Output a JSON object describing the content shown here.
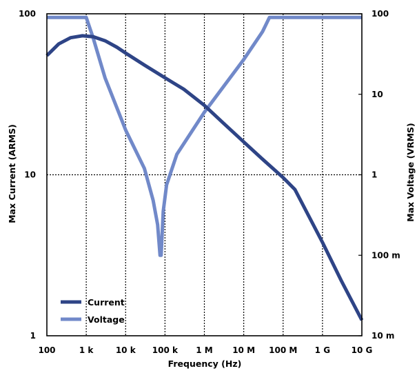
{
  "chart_data": {
    "type": "line",
    "xlabel": "Frequency (Hz)",
    "ylabel_left": "Max Current (ARMS)",
    "ylabel_right": "Max Voltage (VRMS)",
    "x_scale": "log",
    "y_left_scale": "log",
    "y_right_scale": "log",
    "xlim": [
      100,
      10000000000
    ],
    "ylim_left": [
      1,
      100
    ],
    "ylim_right": [
      0.01,
      100
    ],
    "grid": true,
    "legend_position": "bottom-left",
    "x_ticks": [
      {
        "value": 100,
        "label": "100"
      },
      {
        "value": 1000,
        "label": "1 k"
      },
      {
        "value": 10000,
        "label": "10 k"
      },
      {
        "value": 100000,
        "label": "100 k"
      },
      {
        "value": 1000000,
        "label": "1 M"
      },
      {
        "value": 10000000,
        "label": "10 M"
      },
      {
        "value": 100000000,
        "label": "100 M"
      },
      {
        "value": 1000000000,
        "label": "1 G"
      },
      {
        "value": 10000000000,
        "label": "10 G"
      }
    ],
    "y_left_ticks": [
      {
        "value": 1,
        "label": "1"
      },
      {
        "value": 10,
        "label": "10"
      },
      {
        "value": 100,
        "label": "100"
      }
    ],
    "y_right_ticks": [
      {
        "value": 0.01,
        "label": "10 m"
      },
      {
        "value": 0.1,
        "label": "100 m"
      },
      {
        "value": 1,
        "label": "1"
      },
      {
        "value": 10,
        "label": "10"
      },
      {
        "value": 100,
        "label": "100"
      }
    ],
    "series": [
      {
        "name": "Current",
        "axis": "left",
        "color": "#2e4486",
        "points": [
          [
            100,
            55
          ],
          [
            200,
            65
          ],
          [
            400,
            71
          ],
          [
            800,
            73
          ],
          [
            1500,
            72
          ],
          [
            3000,
            68
          ],
          [
            6000,
            62
          ],
          [
            10000,
            57
          ],
          [
            30000,
            48
          ],
          [
            100000,
            40
          ],
          [
            300000,
            34
          ],
          [
            1000000,
            27
          ],
          [
            3000000,
            21
          ],
          [
            10000000,
            16
          ],
          [
            30000000,
            12.5
          ],
          [
            100000000,
            9.6
          ],
          [
            200000000,
            8.1
          ],
          [
            1000000000,
            3.8
          ],
          [
            3000000000,
            2.2
          ],
          [
            10000000000,
            1.25
          ]
        ]
      },
      {
        "name": "Voltage",
        "axis": "right",
        "color": "#7189c9",
        "points": [
          [
            100,
            90
          ],
          [
            1000,
            90
          ],
          [
            1500,
            50
          ],
          [
            3000,
            16
          ],
          [
            10000,
            3.6
          ],
          [
            30000,
            1.2
          ],
          [
            50000,
            0.48
          ],
          [
            65000,
            0.24
          ],
          [
            75000,
            0.1
          ],
          [
            80000,
            0.1
          ],
          [
            90000,
            0.35
          ],
          [
            110000,
            0.75
          ],
          [
            200000,
            1.8
          ],
          [
            1000000,
            6
          ],
          [
            10000000,
            27
          ],
          [
            30000000,
            60
          ],
          [
            45000000,
            90
          ],
          [
            10000000000,
            90
          ]
        ]
      }
    ]
  }
}
